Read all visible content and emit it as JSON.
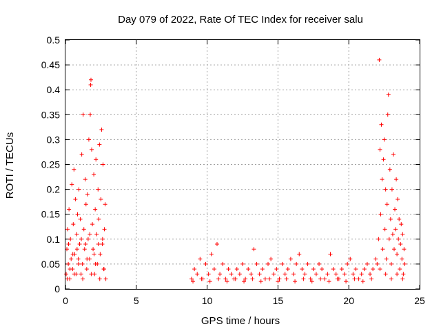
{
  "chart_data": {
    "type": "scatter",
    "title": "Day 079 of 2022, Rate Of TEC Index for receiver salu",
    "xlabel": "GPS time / hours",
    "ylabel": "ROTI / TECUs",
    "xlim": [
      0,
      25
    ],
    "ylim": [
      0,
      0.5
    ],
    "x_ticks": [
      "0",
      "5",
      "10",
      "15",
      "20",
      "25"
    ],
    "y_ticks": [
      "0",
      "0.05",
      "0.1",
      "0.15",
      "0.2",
      "0.25",
      "0.3",
      "0.35",
      "0.4",
      "0.45",
      "0.5"
    ],
    "x_tick_values": [
      0,
      5,
      10,
      15,
      20,
      25
    ],
    "y_tick_values": [
      0,
      0.05,
      0.1,
      0.15,
      0.2,
      0.25,
      0.3,
      0.35,
      0.4,
      0.45,
      0.5
    ],
    "grid": true,
    "marker": "+",
    "marker_color": "#ff0000",
    "series": [
      {
        "points": [
          [
            0.05,
            0.03
          ],
          [
            0.1,
            0.08
          ],
          [
            0.15,
            0.12
          ],
          [
            0.2,
            0.05
          ],
          [
            0.25,
            0.16
          ],
          [
            0.3,
            0.02
          ],
          [
            0.35,
            0.1
          ],
          [
            0.4,
            0.06
          ],
          [
            0.45,
            0.21
          ],
          [
            0.5,
            0.04
          ],
          [
            0.55,
            0.13
          ],
          [
            0.6,
            0.24
          ],
          [
            0.65,
            0.07
          ],
          [
            0.7,
            0.18
          ],
          [
            0.75,
            0.03
          ],
          [
            0.8,
            0.11
          ],
          [
            0.85,
            0.15
          ],
          [
            0.9,
            0.06
          ],
          [
            0.95,
            0.2
          ],
          [
            1.0,
            0.09
          ],
          [
            1.05,
            0.14
          ],
          [
            1.1,
            0.03
          ],
          [
            1.15,
            0.27
          ],
          [
            1.2,
            0.05
          ],
          [
            1.25,
            0.35
          ],
          [
            1.3,
            0.12
          ],
          [
            1.35,
            0.08
          ],
          [
            1.4,
            0.22
          ],
          [
            1.45,
            0.17
          ],
          [
            1.5,
            0.04
          ],
          [
            1.55,
            0.19
          ],
          [
            1.6,
            0.1
          ],
          [
            1.65,
            0.3
          ],
          [
            1.7,
            0.06
          ],
          [
            1.75,
            0.35
          ],
          [
            1.78,
            0.41
          ],
          [
            1.8,
            0.42
          ],
          [
            1.85,
            0.28
          ],
          [
            1.9,
            0.13
          ],
          [
            1.95,
            0.08
          ],
          [
            2.0,
            0.23
          ],
          [
            2.05,
            0.03
          ],
          [
            2.1,
            0.16
          ],
          [
            2.15,
            0.26
          ],
          [
            2.2,
            0.11
          ],
          [
            2.25,
            0.05
          ],
          [
            2.3,
            0.2
          ],
          [
            2.35,
            0.14
          ],
          [
            2.4,
            0.29
          ],
          [
            2.45,
            0.07
          ],
          [
            2.5,
            0.18
          ],
          [
            2.55,
            0.32
          ],
          [
            2.6,
            0.09
          ],
          [
            2.65,
            0.25
          ],
          [
            2.7,
            0.04
          ],
          [
            2.75,
            0.12
          ],
          [
            2.8,
            0.17
          ],
          [
            2.85,
            0.02
          ],
          [
            0.12,
            0.02
          ],
          [
            0.32,
            0.04
          ],
          [
            0.62,
            0.03
          ],
          [
            0.92,
            0.05
          ],
          [
            1.22,
            0.02
          ],
          [
            1.52,
            0.06
          ],
          [
            1.82,
            0.03
          ],
          [
            2.12,
            0.05
          ],
          [
            2.42,
            0.02
          ],
          [
            2.72,
            0.04
          ],
          [
            0.22,
            0.09
          ],
          [
            0.52,
            0.07
          ],
          [
            0.82,
            0.08
          ],
          [
            1.12,
            0.1
          ],
          [
            1.42,
            0.09
          ],
          [
            1.72,
            0.11
          ],
          [
            2.02,
            0.07
          ],
          [
            2.32,
            0.09
          ],
          [
            2.62,
            0.1
          ],
          [
            8.9,
            0.02
          ],
          [
            9.1,
            0.04
          ],
          [
            9.3,
            0.03
          ],
          [
            9.5,
            0.06
          ],
          [
            9.7,
            0.02
          ],
          [
            9.9,
            0.05
          ],
          [
            10.1,
            0.03
          ],
          [
            10.3,
            0.07
          ],
          [
            10.5,
            0.04
          ],
          [
            10.7,
            0.09
          ],
          [
            10.9,
            0.03
          ],
          [
            11.1,
            0.05
          ],
          [
            11.3,
            0.02
          ],
          [
            11.5,
            0.04
          ],
          [
            11.7,
            0.03
          ],
          [
            11.9,
            0.02
          ],
          [
            12.1,
            0.04
          ],
          [
            12.3,
            0.03
          ],
          [
            12.5,
            0.05
          ],
          [
            12.7,
            0.02
          ],
          [
            12.9,
            0.04
          ],
          [
            13.1,
            0.03
          ],
          [
            13.3,
            0.08
          ],
          [
            13.5,
            0.05
          ],
          [
            13.7,
            0.03
          ],
          [
            13.9,
            0.04
          ],
          [
            14.1,
            0.02
          ],
          [
            14.3,
            0.05
          ],
          [
            14.5,
            0.06
          ],
          [
            14.7,
            0.03
          ],
          [
            14.9,
            0.04
          ],
          [
            15.1,
            0.02
          ],
          [
            15.3,
            0.05
          ],
          [
            15.5,
            0.03
          ],
          [
            15.7,
            0.04
          ],
          [
            15.9,
            0.06
          ],
          [
            16.1,
            0.03
          ],
          [
            16.3,
            0.05
          ],
          [
            16.5,
            0.07
          ],
          [
            16.7,
            0.04
          ],
          [
            16.9,
            0.03
          ],
          [
            17.1,
            0.05
          ],
          [
            17.3,
            0.02
          ],
          [
            17.5,
            0.04
          ],
          [
            17.7,
            0.03
          ],
          [
            17.9,
            0.05
          ],
          [
            18.1,
            0.04
          ],
          [
            18.3,
            0.02
          ],
          [
            18.5,
            0.03
          ],
          [
            18.7,
            0.07
          ],
          [
            18.9,
            0.04
          ],
          [
            19.1,
            0.03
          ],
          [
            19.3,
            0.02
          ],
          [
            19.5,
            0.04
          ],
          [
            19.7,
            0.03
          ],
          [
            19.9,
            0.05
          ],
          [
            20.1,
            0.06
          ],
          [
            20.3,
            0.03
          ],
          [
            20.5,
            0.04
          ],
          [
            20.7,
            0.02
          ],
          [
            20.9,
            0.03
          ],
          [
            21.1,
            0.04
          ],
          [
            21.3,
            0.05
          ],
          [
            21.5,
            0.03
          ],
          [
            21.7,
            0.04
          ],
          [
            21.9,
            0.06
          ],
          [
            9.0,
            0.015
          ],
          [
            9.6,
            0.02
          ],
          [
            10.2,
            0.015
          ],
          [
            10.8,
            0.02
          ],
          [
            11.4,
            0.015
          ],
          [
            12.0,
            0.02
          ],
          [
            12.6,
            0.015
          ],
          [
            13.2,
            0.02
          ],
          [
            13.8,
            0.015
          ],
          [
            14.4,
            0.02
          ],
          [
            15.0,
            0.015
          ],
          [
            15.6,
            0.02
          ],
          [
            16.2,
            0.015
          ],
          [
            16.8,
            0.02
          ],
          [
            17.4,
            0.015
          ],
          [
            18.0,
            0.02
          ],
          [
            18.6,
            0.015
          ],
          [
            19.2,
            0.02
          ],
          [
            19.8,
            0.015
          ],
          [
            20.4,
            0.02
          ],
          [
            21.0,
            0.015
          ],
          [
            21.6,
            0.02
          ],
          [
            22.0,
            0.05
          ],
          [
            22.1,
            0.1
          ],
          [
            22.15,
            0.46
          ],
          [
            22.2,
            0.28
          ],
          [
            22.25,
            0.15
          ],
          [
            22.3,
            0.33
          ],
          [
            22.35,
            0.22
          ],
          [
            22.4,
            0.08
          ],
          [
            22.45,
            0.26
          ],
          [
            22.5,
            0.3
          ],
          [
            22.55,
            0.12
          ],
          [
            22.6,
            0.2
          ],
          [
            22.65,
            0.06
          ],
          [
            22.7,
            0.17
          ],
          [
            22.75,
            0.35
          ],
          [
            22.8,
            0.39
          ],
          [
            22.85,
            0.1
          ],
          [
            22.9,
            0.24
          ],
          [
            22.95,
            0.14
          ],
          [
            23.0,
            0.05
          ],
          [
            23.05,
            0.2
          ],
          [
            23.1,
            0.11
          ],
          [
            23.15,
            0.27
          ],
          [
            23.2,
            0.08
          ],
          [
            23.25,
            0.16
          ],
          [
            23.3,
            0.12
          ],
          [
            23.35,
            0.22
          ],
          [
            23.4,
            0.07
          ],
          [
            23.45,
            0.18
          ],
          [
            23.5,
            0.1
          ],
          [
            23.55,
            0.14
          ],
          [
            23.6,
            0.04
          ],
          [
            23.65,
            0.09
          ],
          [
            23.7,
            0.13
          ],
          [
            23.75,
            0.06
          ],
          [
            23.8,
            0.11
          ],
          [
            23.85,
            0.03
          ],
          [
            23.9,
            0.08
          ],
          [
            23.95,
            0.05
          ],
          [
            22.2,
            0.04
          ],
          [
            22.6,
            0.03
          ],
          [
            23.0,
            0.02
          ],
          [
            23.4,
            0.03
          ],
          [
            23.8,
            0.02
          ]
        ]
      }
    ]
  }
}
